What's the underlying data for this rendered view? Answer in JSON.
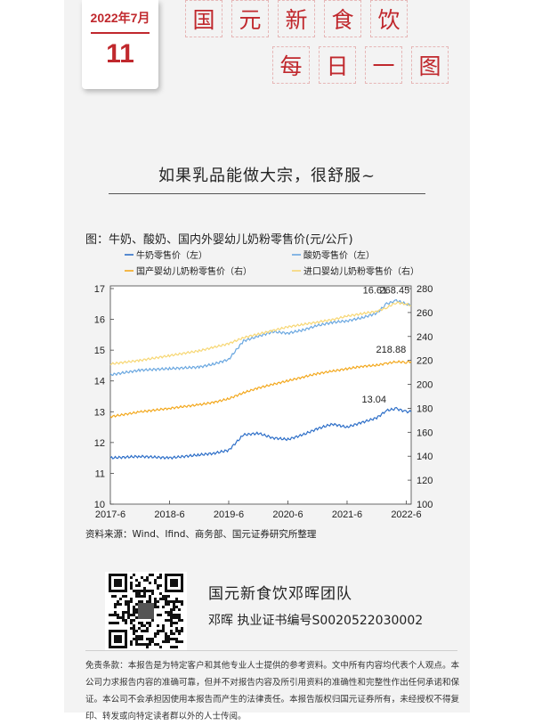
{
  "calendar": {
    "month": "2022年7月",
    "day": "11"
  },
  "brand": {
    "row1": [
      "国",
      "元",
      "新",
      "食",
      "饮"
    ],
    "row2": [
      "每",
      "日",
      "一",
      "图"
    ]
  },
  "headline": "如果乳品能做大宗，很舒服~",
  "figure_title": "图：牛奶、酸奶、国内外婴幼儿奶粉零售价(元/公斤)",
  "source": "资料来源：Wind、Ifind、商务部、国元证券研究所整理",
  "team": {
    "name": "国元新食饮邓晖团队",
    "analyst": "邓晖  执业证书编号S0020522030002"
  },
  "disclaimer": "免责条款：本报告是为特定客户和其他专业人士提供的参考资料。文中所有内容均代表个人观点。本公司力求报告内容的准确可靠，但并不对报告内容及所引用资料的准确性和完整性作出任何承诺和保证。本公司不会承担因使用本报告而产生的法律责任。本报告版权归国元证券所有，未经授权不得复印、转发或向特定读者群以外的人士传阅。",
  "colors": {
    "milk": "#2e6fc8",
    "yogurt": "#6aa7e0",
    "domestic_formula": "#f3a81d",
    "imported_formula": "#f7d774",
    "brand_red": "#c0282d"
  },
  "chart_data": {
    "type": "line",
    "title": "图：牛奶、酸奶、国内外婴幼儿奶粉零售价(元/公斤)",
    "x_ticks": [
      "2017-6",
      "2018-6",
      "2019-6",
      "2020-6",
      "2021-6",
      "2022-6"
    ],
    "x_range": [
      "2017-06",
      "2022-07"
    ],
    "y_left": {
      "range": [
        10,
        17
      ],
      "ticks": [
        10,
        11,
        12,
        13,
        14,
        15,
        16,
        17
      ]
    },
    "y_right": {
      "range": [
        100,
        280
      ],
      "ticks": [
        100,
        120,
        140,
        160,
        180,
        200,
        220,
        240,
        260,
        280
      ]
    },
    "grid": false,
    "legend_position": "top",
    "series": [
      {
        "name": "牛奶零售价（左）",
        "axis": "left",
        "color": "#2e6fc8",
        "x": [
          "2017-06",
          "2017-12",
          "2018-06",
          "2018-12",
          "2019-03",
          "2019-06",
          "2019-09",
          "2019-12",
          "2020-03",
          "2020-06",
          "2020-09",
          "2020-12",
          "2021-03",
          "2021-06",
          "2021-09",
          "2021-12",
          "2022-02",
          "2022-04",
          "2022-06",
          "2022-07"
        ],
        "values": [
          11.5,
          11.55,
          11.5,
          11.6,
          11.65,
          11.75,
          12.25,
          12.3,
          12.15,
          12.1,
          12.25,
          12.45,
          12.6,
          12.5,
          12.65,
          12.8,
          13.04,
          13.1,
          13.0,
          13.0
        ]
      },
      {
        "name": "酸奶零售价（左）",
        "axis": "left",
        "color": "#6aa7e0",
        "x": [
          "2017-06",
          "2017-12",
          "2018-06",
          "2018-12",
          "2019-03",
          "2019-06",
          "2019-09",
          "2019-12",
          "2020-03",
          "2020-06",
          "2020-09",
          "2020-12",
          "2021-03",
          "2021-06",
          "2021-09",
          "2021-12",
          "2022-02",
          "2022-04",
          "2022-06",
          "2022-07"
        ],
        "values": [
          14.2,
          14.35,
          14.4,
          14.45,
          14.55,
          14.7,
          15.3,
          15.45,
          15.6,
          15.55,
          15.65,
          15.8,
          15.9,
          15.95,
          16.05,
          16.2,
          16.5,
          16.61,
          16.5,
          16.45
        ]
      },
      {
        "name": "国产婴幼儿奶粉零售价（右）",
        "axis": "right",
        "color": "#f3a81d",
        "x": [
          "2017-06",
          "2017-12",
          "2018-06",
          "2018-12",
          "2019-03",
          "2019-06",
          "2019-09",
          "2019-12",
          "2020-03",
          "2020-06",
          "2020-09",
          "2020-12",
          "2021-03",
          "2021-06",
          "2021-09",
          "2021-12",
          "2022-02",
          "2022-04",
          "2022-06",
          "2022-07"
        ],
        "values": [
          173,
          177,
          180,
          183,
          185,
          188,
          193,
          197,
          200,
          203,
          206,
          209,
          211,
          213,
          215,
          216,
          217.5,
          218.88,
          218.5,
          219
        ]
      },
      {
        "name": "进口婴幼儿奶粉零售价（右）",
        "axis": "right",
        "color": "#f7d774",
        "x": [
          "2017-06",
          "2017-12",
          "2018-06",
          "2018-12",
          "2019-03",
          "2019-06",
          "2019-09",
          "2019-12",
          "2020-03",
          "2020-06",
          "2020-09",
          "2020-12",
          "2021-03",
          "2021-06",
          "2021-09",
          "2021-12",
          "2022-02",
          "2022-04",
          "2022-06",
          "2022-07"
        ],
        "values": [
          217,
          220,
          224,
          228,
          231,
          234,
          239,
          242,
          245,
          248,
          250,
          252,
          254,
          257,
          259,
          261,
          264,
          268.45,
          267,
          266
        ]
      }
    ],
    "annotations": [
      {
        "text": "16.61",
        "series": 1,
        "x": "2022-04"
      },
      {
        "text": "268.45",
        "series": 3,
        "x": "2022-04"
      },
      {
        "text": "218.88",
        "series": 2,
        "x": "2022-04"
      },
      {
        "text": "13.04",
        "series": 0,
        "x": "2022-02"
      }
    ]
  }
}
